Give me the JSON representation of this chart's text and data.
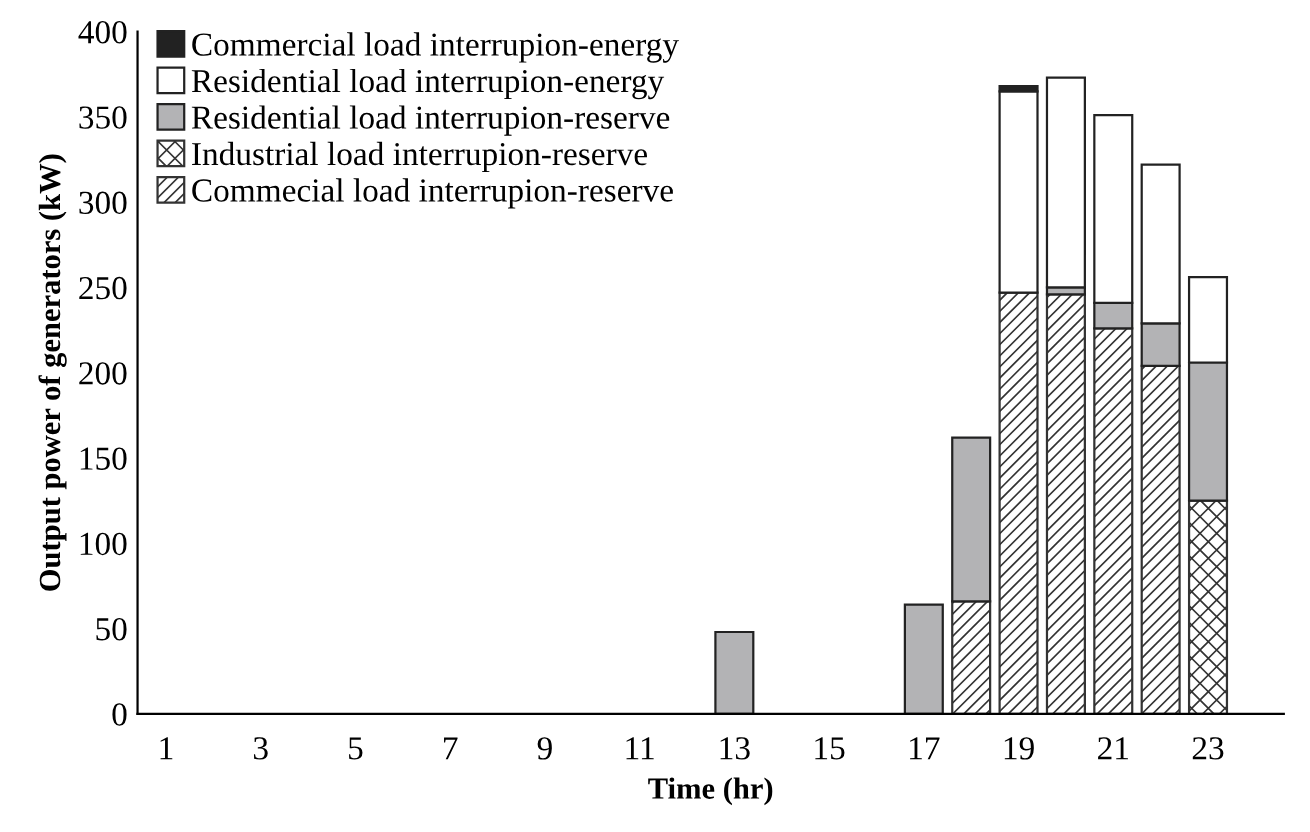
{
  "chart_data": {
    "type": "bar",
    "stacked": true,
    "xlabel": "Time (hr)",
    "ylabel": "Output power of generators (kW)",
    "categories": [
      "1",
      null,
      "3",
      null,
      "5",
      null,
      "7",
      null,
      "9",
      null,
      "11",
      null,
      "13",
      null,
      "15",
      null,
      "17",
      null,
      "19",
      null,
      "21",
      null,
      "23",
      null
    ],
    "ylim": [
      0,
      400
    ],
    "yticks": [
      0,
      50,
      100,
      150,
      200,
      250,
      300,
      350,
      400
    ],
    "legend": "top left",
    "grid": false,
    "series": [
      {
        "name": "Commecial load interrupion-reserve",
        "color": "#333333",
        "values": [
          0,
          0,
          0,
          0,
          0,
          0,
          0,
          0,
          0,
          0,
          0,
          0,
          0,
          0,
          0,
          0,
          0,
          66,
          247,
          246,
          226,
          204,
          0,
          0
        ]
      },
      {
        "name": "Industrial load interrupion-reserve",
        "color": "#333333",
        "values": [
          0,
          0,
          0,
          0,
          0,
          0,
          0,
          0,
          0,
          0,
          0,
          0,
          0,
          0,
          0,
          0,
          0,
          0,
          0,
          0,
          0,
          0,
          125,
          0
        ]
      },
      {
        "name": "Residential load interrupion-reserve",
        "color": "#b3b3b5",
        "values": [
          0,
          0,
          0,
          0,
          0,
          0,
          0,
          0,
          0,
          0,
          0,
          0,
          48,
          0,
          0,
          0,
          64,
          96,
          0,
          4,
          15,
          25,
          81,
          0
        ]
      },
      {
        "name": "Residential load interrupion-energy",
        "color": "#ffffff",
        "values": [
          0,
          0,
          0,
          0,
          0,
          0,
          0,
          0,
          0,
          0,
          0,
          0,
          0,
          0,
          0,
          0,
          0,
          0,
          118,
          123,
          110,
          93,
          50,
          0
        ]
      },
      {
        "name": "Commercial load interrupion-energy",
        "color": "#222222",
        "values": [
          0,
          0,
          0,
          0,
          0,
          0,
          0,
          0,
          0,
          0,
          0,
          0,
          0,
          0,
          0,
          0,
          0,
          0,
          3,
          0,
          0,
          0,
          0,
          0
        ]
      }
    ]
  }
}
